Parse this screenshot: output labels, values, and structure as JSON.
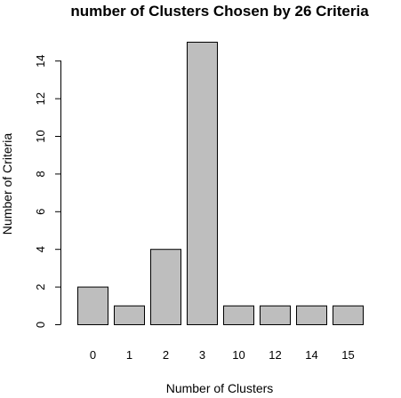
{
  "chart_data": {
    "type": "bar",
    "title": "number of Clusters Chosen by 26 Criteria",
    "xlabel": "Number of Clusters",
    "ylabel": "Number of Criteria",
    "categories": [
      "0",
      "1",
      "2",
      "3",
      "10",
      "12",
      "14",
      "15"
    ],
    "values": [
      2,
      1,
      4,
      15,
      1,
      1,
      1,
      1
    ],
    "ylim": [
      0,
      15
    ],
    "yticks": [
      0,
      2,
      4,
      6,
      8,
      10,
      12,
      14
    ],
    "bar_color": "#bebebe",
    "grid": false,
    "legend": "none"
  }
}
